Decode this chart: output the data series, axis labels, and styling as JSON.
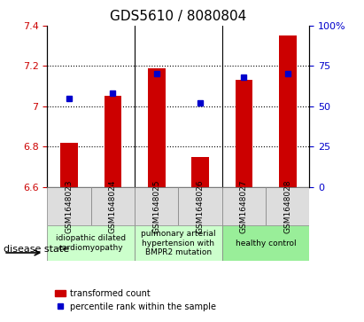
{
  "title": "GDS5610 / 8080804",
  "categories": [
    "GSM1648023",
    "GSM1648024",
    "GSM1648025",
    "GSM1648026",
    "GSM1648027",
    "GSM1648028"
  ],
  "red_values": [
    6.82,
    7.05,
    7.19,
    6.75,
    7.13,
    7.35
  ],
  "blue_values": [
    7.07,
    7.09,
    7.14,
    7.04,
    7.13,
    7.14
  ],
  "blue_pct": [
    55,
    58,
    70,
    52,
    68,
    70
  ],
  "ylim": [
    6.6,
    7.4
  ],
  "y2lim": [
    0,
    100
  ],
  "yticks": [
    6.6,
    6.8,
    7.0,
    7.2,
    7.4
  ],
  "y2ticks": [
    0,
    25,
    50,
    75,
    100
  ],
  "ytick_labels": [
    "6.6",
    "6.8",
    "7",
    "7.2",
    "7.4"
  ],
  "y2tick_labels": [
    "0",
    "25",
    "50",
    "75",
    "100%"
  ],
  "bar_color": "#cc0000",
  "dot_color": "#0000cc",
  "bar_width": 0.4,
  "background_plot": "#ffffff",
  "grid_color": "#000000",
  "disease_groups": [
    {
      "label": "idiopathic dilated\ncardiomyopathy",
      "indices": [
        0,
        1
      ],
      "color": "#ccffcc"
    },
    {
      "label": "pulmonary arterial\nhypertension with\nBMPR2 mutation",
      "indices": [
        2,
        3
      ],
      "color": "#ccffcc"
    },
    {
      "label": "healthy control",
      "indices": [
        4,
        5
      ],
      "color": "#66ff66"
    }
  ],
  "disease_state_label": "disease state",
  "legend_red": "transformed count",
  "legend_blue": "percentile rank within the sample",
  "title_fontsize": 11,
  "axis_fontsize": 8,
  "tick_fontsize": 8,
  "xlabel_color": "#cc0000",
  "ylabel_color": "#0000cc"
}
